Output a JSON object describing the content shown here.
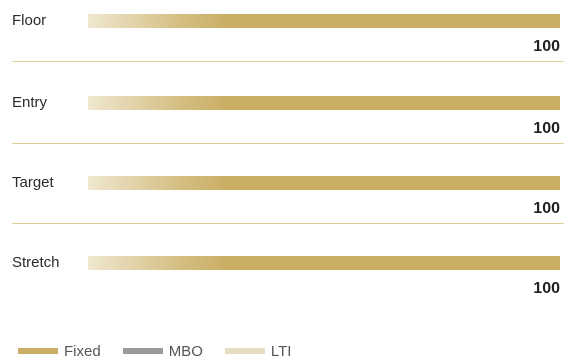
{
  "chart_data": {
    "type": "bar",
    "orientation": "horizontal",
    "stacked": true,
    "categories": [
      "Floor",
      "Entry",
      "Target",
      "Stretch"
    ],
    "totals": [
      "100",
      "100",
      "100",
      "100"
    ],
    "series": [
      {
        "name": "Fixed",
        "color": "#c9ae63"
      },
      {
        "name": "MBO",
        "color": "#9a9a9a"
      },
      {
        "name": "LTI",
        "color": "#e6dcc2"
      }
    ],
    "xlim": [
      0,
      100
    ],
    "legend_position": "bottom-left"
  }
}
